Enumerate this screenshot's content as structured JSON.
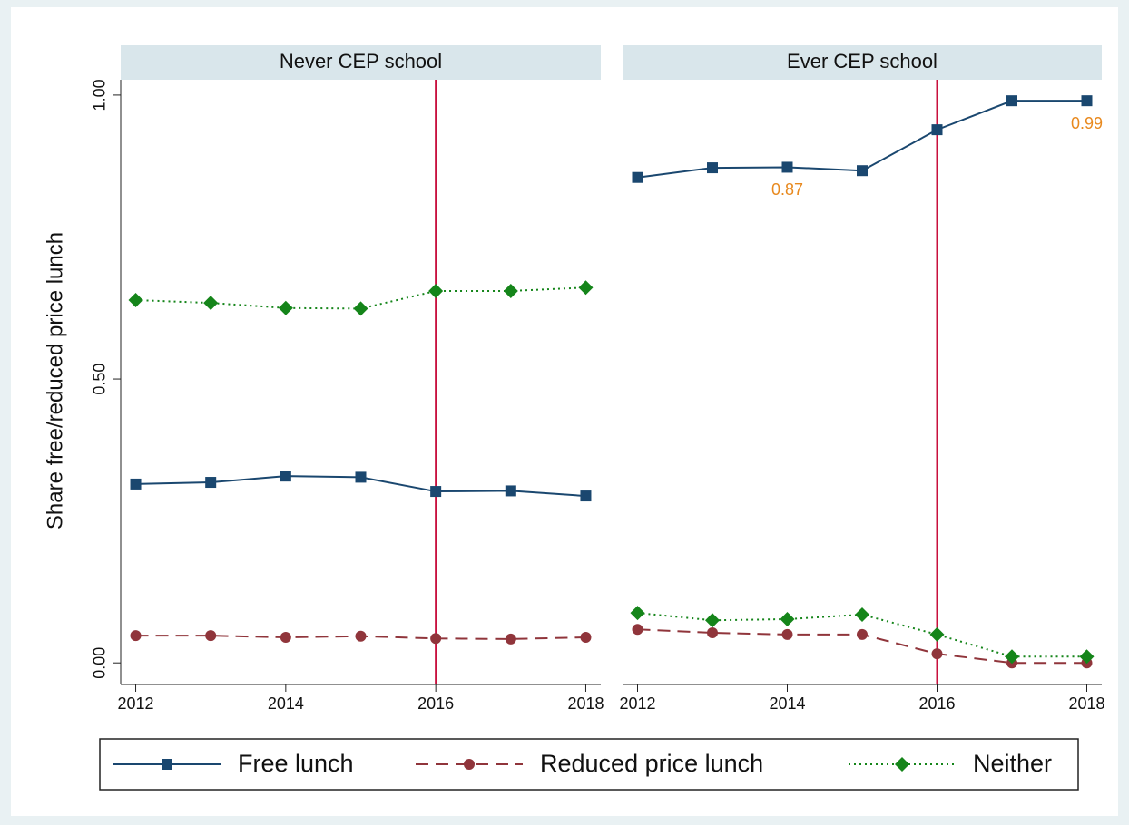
{
  "chart_data": {
    "type": "line",
    "y_label": "Share free/reduced price lunch",
    "x": [
      2012,
      2013,
      2014,
      2015,
      2016,
      2017,
      2018
    ],
    "xlim": [
      2011.8,
      2018.2
    ],
    "xticks": [
      2012,
      2014,
      2016,
      2018
    ],
    "ylim": [
      -0.038,
      1.027
    ],
    "yticks": [
      {
        "value": 0,
        "label": "0.00"
      },
      {
        "value": 0.5,
        "label": "0.50"
      },
      {
        "value": 1,
        "label": "1.00"
      }
    ],
    "vline": 2016,
    "vline_color": "#c8103e",
    "label_color": "#e8891e",
    "series": [
      {
        "name": "Free lunch",
        "color": "#1a476f",
        "marker": "square",
        "dash": "solid"
      },
      {
        "name": "Reduced price lunch",
        "color": "#90353b",
        "marker": "circle",
        "dash": "dashed"
      },
      {
        "name": "Neither",
        "color": "#15851a",
        "marker": "diamond",
        "dash": "dotted"
      }
    ],
    "panels": [
      {
        "title": "Never CEP school",
        "series": [
          {
            "values": [
              0.315,
              0.318,
              0.329,
              0.327,
              0.302,
              0.303,
              0.294
            ]
          },
          {
            "values": [
              0.048,
              0.048,
              0.045,
              0.047,
              0.043,
              0.042,
              0.045
            ]
          },
          {
            "values": [
              0.639,
              0.634,
              0.625,
              0.624,
              0.655,
              0.655,
              0.661
            ]
          }
        ]
      },
      {
        "title": "Ever CEP school",
        "series": [
          {
            "values": [
              0.855,
              0.872,
              0.873,
              0.867,
              0.939,
              0.99,
              0.99
            ],
            "value_labels": [
              null,
              null,
              "0.87",
              null,
              null,
              null,
              "0.99"
            ]
          },
          {
            "values": [
              0.059,
              0.053,
              0.05,
              0.05,
              0.016,
              0.0,
              0.0
            ]
          },
          {
            "values": [
              0.088,
              0.075,
              0.077,
              0.085,
              0.05,
              0.011,
              0.011
            ]
          }
        ]
      }
    ]
  }
}
